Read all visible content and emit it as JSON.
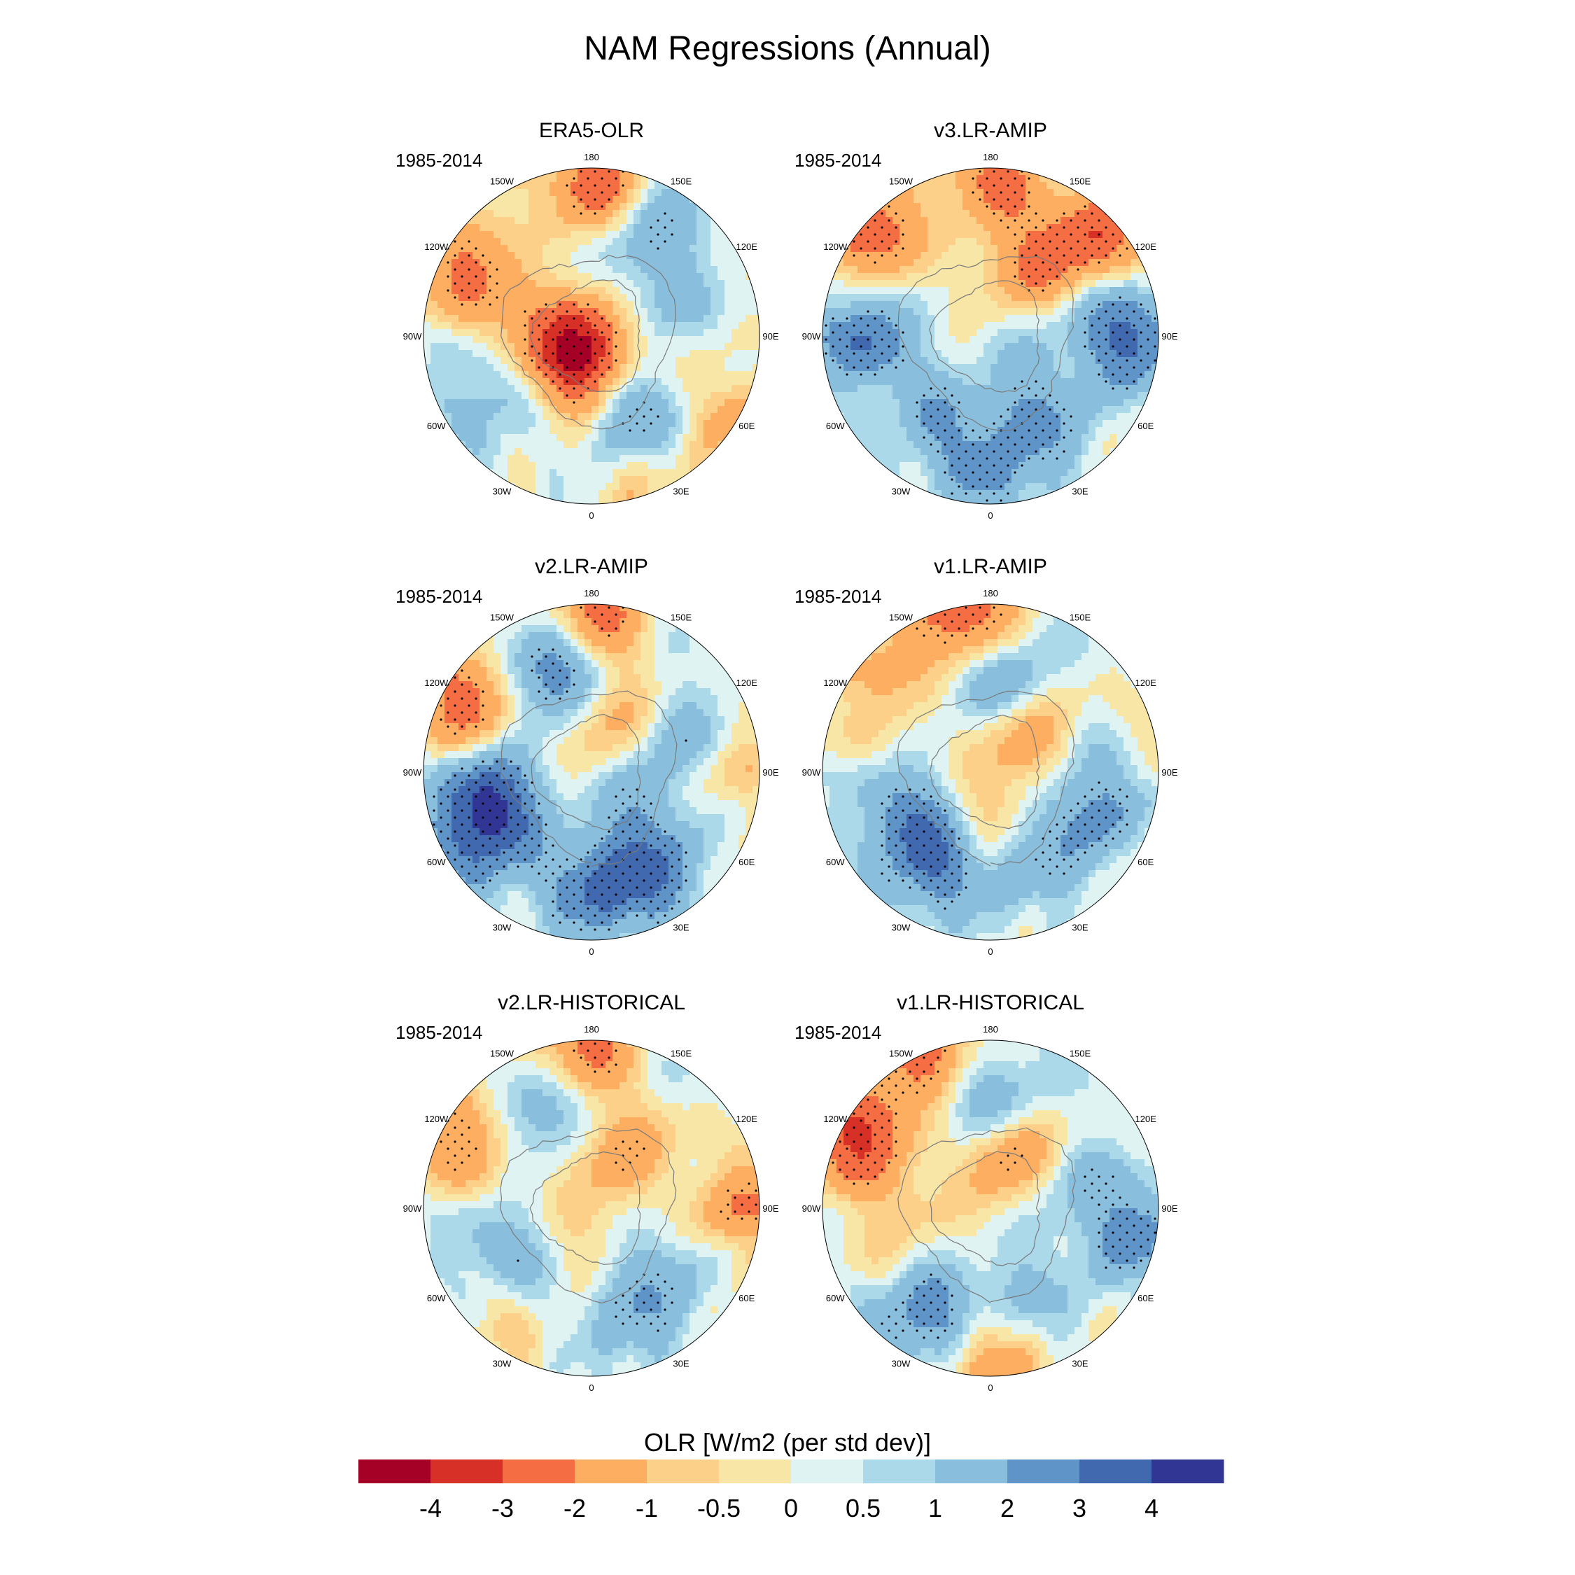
{
  "title": "NAM Regressions (Annual)",
  "panels": [
    {
      "title": "ERA5-OLR",
      "period": "1985-2014",
      "pattern": "era5"
    },
    {
      "title": "v3.LR-AMIP",
      "period": "1985-2014",
      "pattern": "v3amip"
    },
    {
      "title": "v2.LR-AMIP",
      "period": "1985-2014",
      "pattern": "v2amip"
    },
    {
      "title": "v1.LR-AMIP",
      "period": "1985-2014",
      "pattern": "v1amip"
    },
    {
      "title": "v2.LR-HISTORICAL",
      "period": "1985-2014",
      "pattern": "v2hist"
    },
    {
      "title": "v1.LR-HISTORICAL",
      "period": "1985-2014",
      "pattern": "v1hist"
    }
  ],
  "longitude_labels": [
    "180",
    "150E",
    "120E",
    "90E",
    "60E",
    "30E",
    "0",
    "30W",
    "60W",
    "90W",
    "120W",
    "150W"
  ],
  "colorbar": {
    "title": "OLR [W/m2 (per std dev)]",
    "ticks": [
      "-4",
      "-3",
      "-2",
      "-1",
      "-0.5",
      "0",
      "0.5",
      "1",
      "2",
      "3",
      "4"
    ],
    "colors": [
      "#a50026",
      "#d73027",
      "#f46d43",
      "#fdae61",
      "#fdd08a",
      "#f7e6a6",
      "#e0f3f3",
      "#abd9e9",
      "#89bfdd",
      "#5e94c7",
      "#4069b0",
      "#313695"
    ]
  },
  "chart_data": {
    "type": "heatmap",
    "projection": "polar stereographic (north pole)",
    "variable": "OLR regression on NAM index",
    "units": "W/m2 (per std dev)",
    "period": "1985-2014",
    "levels": [
      -4,
      -3,
      -2,
      -1,
      -0.5,
      0,
      0.5,
      1,
      2,
      3,
      4
    ],
    "panels": [
      "ERA5-OLR",
      "v3.LR-AMIP",
      "v2.LR-AMIP",
      "v1.LR-AMIP",
      "v2.LR-HISTORICAL",
      "v1.LR-HISTORICAL"
    ]
  }
}
